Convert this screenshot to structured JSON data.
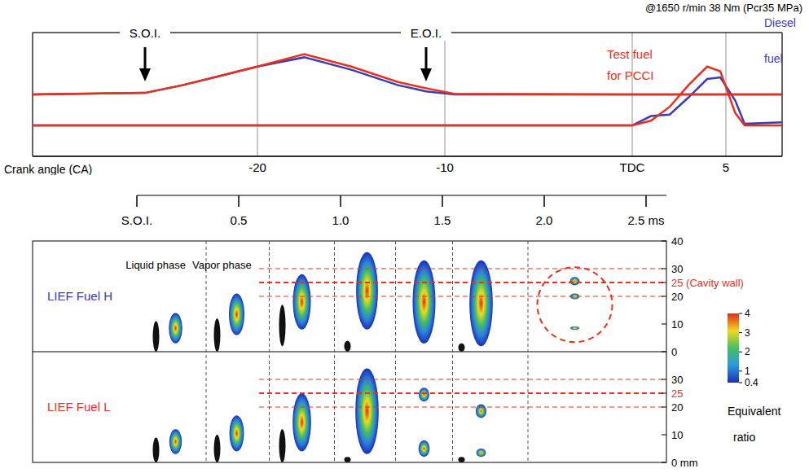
{
  "chart_data": {
    "type": "line",
    "title": "@1650 r/min 38 Nm (Pcr35 MPa)",
    "x_label": "Crank angle (CA)",
    "xlim": [
      -32,
      8
    ],
    "xticks": [
      -20,
      -10,
      {
        "value": 0,
        "label": "TDC"
      },
      5
    ],
    "ylim": [
      0,
      4
    ],
    "yticks": [
      0,
      1,
      2,
      3,
      4
    ],
    "tick_labels": "x",
    "grid": true,
    "annotations": [
      {
        "text": "S.O.I.",
        "x": -26
      },
      {
        "text": "E.O.I.",
        "x": -11
      }
    ],
    "x": [
      -32,
      -26,
      -24,
      -22,
      -20,
      -17.5,
      -15,
      -12.5,
      -11,
      -9.5,
      0,
      1,
      2,
      3,
      4,
      4.7,
      5.5,
      6,
      8
    ],
    "series": [
      {
        "name": "Test fuel for PCCI",
        "color": "#e8301c",
        "injection_rate": [
          2,
          2.05,
          2.3,
          2.6,
          2.9,
          3.3,
          2.9,
          2.4,
          2.2,
          2.02,
          2,
          2,
          2,
          2,
          2,
          2,
          2,
          2,
          2
        ],
        "heat_release_rate": [
          1,
          1,
          1,
          1,
          1,
          1,
          1,
          1,
          1,
          1,
          1,
          1.15,
          1.6,
          2.3,
          2.9,
          2.75,
          1.4,
          1,
          1
        ]
      },
      {
        "name": "Diesel fuel",
        "color": "#3c3cb4",
        "injection_rate": [
          2,
          2.05,
          2.3,
          2.6,
          2.9,
          3.2,
          2.8,
          2.3,
          2.1,
          2,
          2,
          2,
          2,
          2,
          2,
          2,
          2,
          2,
          2
        ],
        "heat_release_rate": [
          1,
          1,
          1,
          1,
          1,
          1,
          1,
          1,
          1,
          1,
          1,
          1.3,
          1.35,
          1.9,
          2.5,
          2.55,
          1.8,
          1.05,
          1.1
        ]
      }
    ]
  },
  "lief_images": {
    "xlim": [
      0,
      2.6
    ],
    "xticks": [
      {
        "value": 0,
        "label": "S.O.I."
      },
      0.5,
      {
        "value": 1,
        "label": "1.0"
      },
      1.5,
      {
        "value": 2,
        "label": "2.0"
      },
      {
        "value": 2.5,
        "label": "2.5 ms"
      }
    ],
    "phase_labels": [
      "Liquid phase",
      "Vapor phase"
    ],
    "reference_lines": [
      20,
      25,
      30
    ],
    "cavity_wall": 25,
    "rows": [
      {
        "name": "LIEF Fuel H",
        "color": "#3a3aaa",
        "ylim": [
          0,
          40
        ],
        "yticks": [
          0,
          10,
          20,
          {
            "value": 25,
            "label": "25 (Cavity wall)"
          },
          30,
          40
        ],
        "frames": [
          {
            "t": 0.19,
            "liquid": [
              0,
              11
            ],
            "vapor": [
              [
                3,
                14
              ]
            ]
          },
          {
            "t": 0.49,
            "liquid": [
              0,
              12
            ],
            "vapor": [
              [
                6,
                21
              ]
            ]
          },
          {
            "t": 0.81,
            "liquid": [
              2,
              17
            ],
            "vapor": [
              [
                8,
                28
              ]
            ]
          },
          {
            "t": 1.13,
            "liquid": [
              0,
              4
            ],
            "vapor": [
              [
                8,
                36
              ]
            ]
          },
          {
            "t": 1.41,
            "liquid": null,
            "vapor": [
              [
                3,
                33
              ]
            ]
          },
          {
            "t": 1.69,
            "liquid": [
              0,
              3
            ],
            "vapor": [
              [
                2,
                33
              ]
            ]
          },
          {
            "t": 2.15,
            "liquid": null,
            "vapor": [
              [
                24,
                27
              ],
              [
                19,
                21
              ],
              [
                8,
                9
              ]
            ]
          }
        ]
      },
      {
        "name": "LIEF Fuel L",
        "color": "#e8301c",
        "ylim": [
          0,
          40
        ],
        "yticks": [
          {
            "value": 0,
            "label": "0 mm"
          },
          10,
          20,
          25,
          30
        ],
        "frames": [
          {
            "t": 0.19,
            "liquid": [
              0,
              9
            ],
            "vapor": [
              [
                3,
                12
              ]
            ]
          },
          {
            "t": 0.49,
            "liquid": [
              0,
              10
            ],
            "vapor": [
              [
                4,
                17
              ]
            ]
          },
          {
            "t": 0.81,
            "liquid": [
              0,
              12
            ],
            "vapor": [
              [
                4,
                25
              ]
            ]
          },
          {
            "t": 1.13,
            "liquid": [
              0,
              2
            ],
            "vapor": [
              [
                3,
                34
              ]
            ]
          },
          {
            "t": 1.41,
            "liquid": null,
            "vapor": [
              [
                2,
                8
              ],
              [
                22,
                27
              ]
            ]
          },
          {
            "t": 1.69,
            "liquid": [
              0,
              2
            ],
            "vapor": [
              [
                2,
                5
              ],
              [
                16,
                21
              ]
            ]
          },
          {
            "t": 2.15,
            "liquid": null,
            "vapor": []
          }
        ]
      }
    ],
    "colorbar": {
      "label": "Equivalent ratio",
      "range": [
        0.4,
        4
      ],
      "ticks": [
        0.4,
        1,
        2,
        3,
        4
      ]
    }
  }
}
